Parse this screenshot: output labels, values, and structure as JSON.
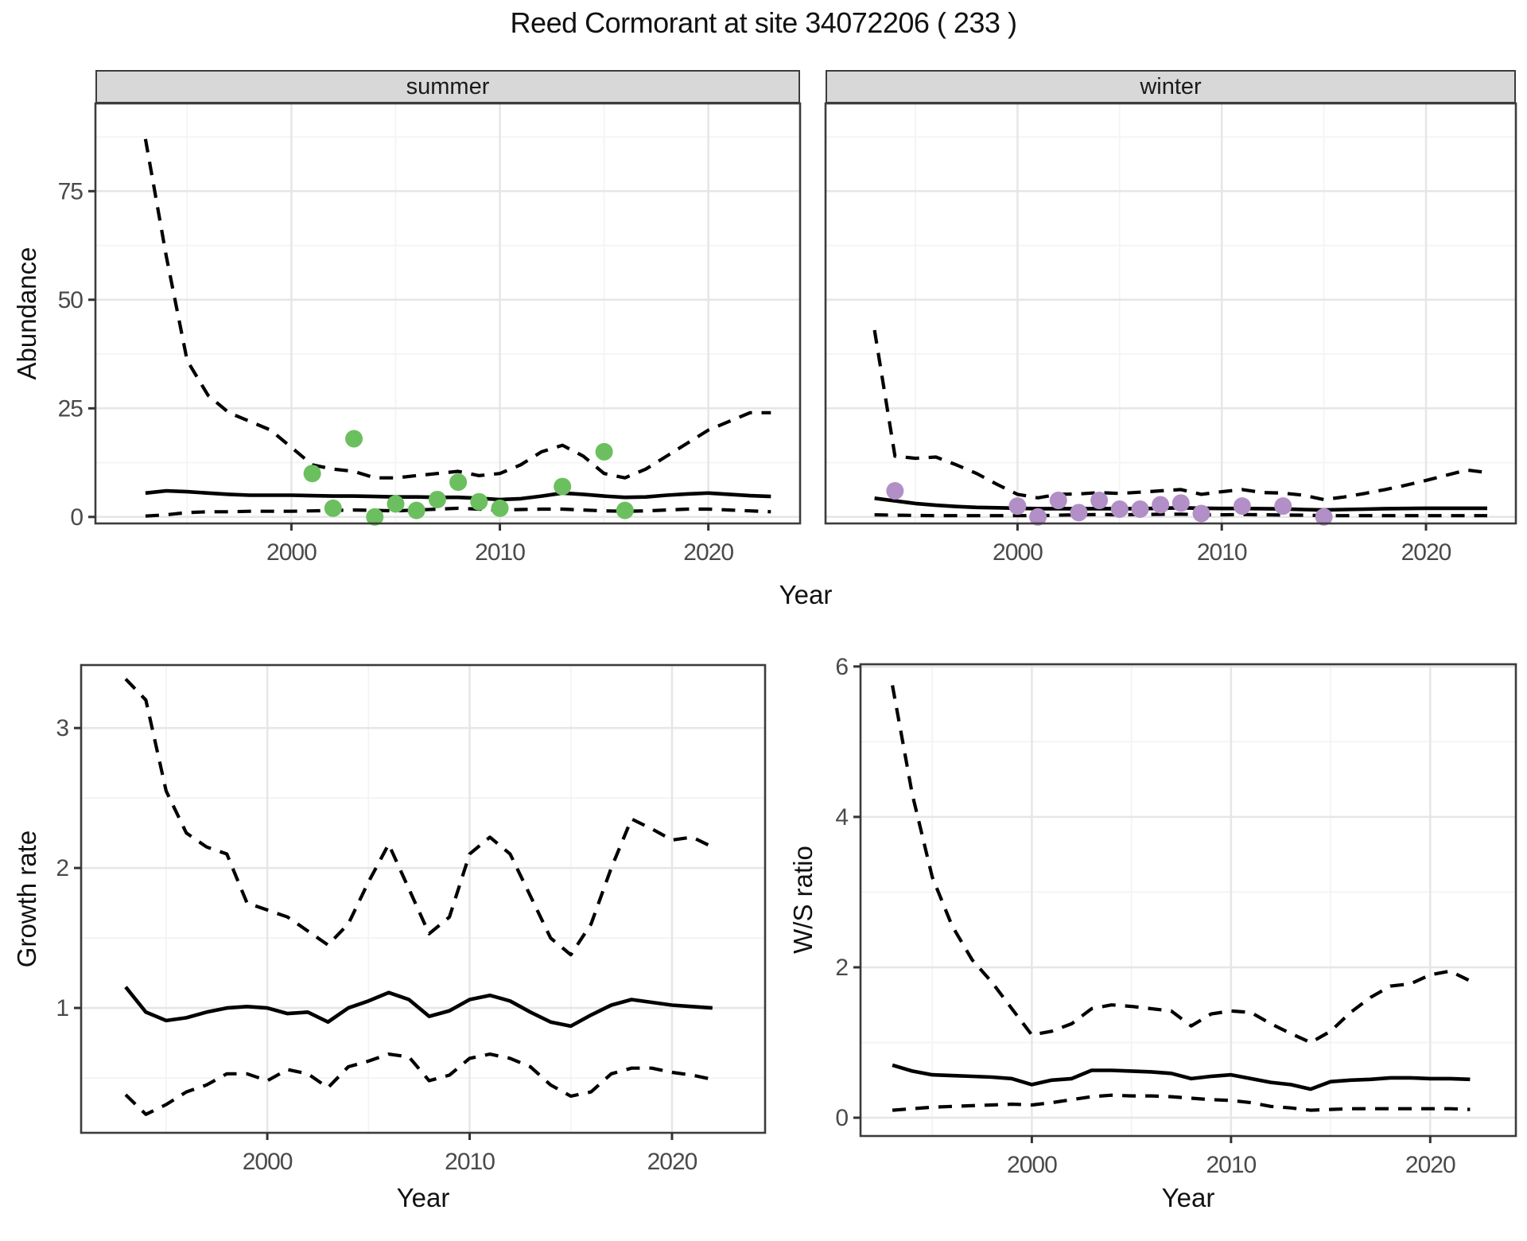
{
  "title": "Reed Cormorant at site 34072206 ( 233 )",
  "colors": {
    "summer_point": "#6cbf5f",
    "winter_point": "#b28fc6",
    "line": "#000000",
    "strip_bg": "#d8d8d8",
    "panel_bg": "#ffffff",
    "grid_major": "#e6e6e6",
    "grid_minor": "#f3f3f3",
    "panel_border": "#3c3c3c",
    "axis_text": "#4a4a4a",
    "tick_mark": "#333333"
  },
  "chart_data": [
    {
      "type": "line+scatter",
      "facet": "summer",
      "xlabel": "Year",
      "ylabel": "Abundance",
      "xlim": [
        1990.6,
        2024.4
      ],
      "ylim": [
        -1.5,
        95.2
      ],
      "xticks": [
        2000,
        2010,
        2020
      ],
      "xminor": [
        1995,
        2005,
        2015
      ],
      "yticks": [
        0,
        25,
        50,
        75
      ],
      "yminor": [
        12.5,
        37.5,
        62.5,
        87.5
      ],
      "grid": true,
      "legend": "none",
      "years": [
        1993,
        1994,
        1995,
        1996,
        1997,
        1998,
        1999,
        2000,
        2001,
        2002,
        2003,
        2004,
        2005,
        2006,
        2007,
        2008,
        2009,
        2010,
        2011,
        2012,
        2013,
        2014,
        2015,
        2016,
        2017,
        2018,
        2019,
        2020,
        2021,
        2022,
        2023
      ],
      "series": [
        {
          "name": "upper_95ci",
          "style": "dashed",
          "values": [
            87,
            60,
            36,
            28,
            24,
            22,
            20,
            16,
            12,
            11,
            10.5,
            9,
            9,
            9.5,
            10,
            10.5,
            9.5,
            10,
            12,
            15,
            16.5,
            14,
            10,
            9,
            11,
            14,
            17,
            20,
            22,
            24,
            24
          ]
        },
        {
          "name": "lower_95ci",
          "style": "dashed",
          "values": [
            0.2,
            0.5,
            1.0,
            1.2,
            1.2,
            1.3,
            1.3,
            1.3,
            1.4,
            1.5,
            1.6,
            1.5,
            1.4,
            1.6,
            1.8,
            2.0,
            1.8,
            1.6,
            1.7,
            1.8,
            1.8,
            1.6,
            1.4,
            1.3,
            1.4,
            1.6,
            1.8,
            1.8,
            1.6,
            1.4,
            1.2
          ]
        },
        {
          "name": "mean",
          "style": "solid",
          "values": [
            5.5,
            6.0,
            5.8,
            5.5,
            5.2,
            5.0,
            5.0,
            5.0,
            4.9,
            4.8,
            4.8,
            4.7,
            4.6,
            4.6,
            4.5,
            4.5,
            4.3,
            4.0,
            4.2,
            4.8,
            5.5,
            5.2,
            4.8,
            4.5,
            4.6,
            5.0,
            5.3,
            5.5,
            5.2,
            4.9,
            4.7
          ]
        }
      ],
      "points": {
        "name": "observed_counts",
        "x": [
          2001,
          2002,
          2003,
          2004,
          2005,
          2006,
          2007,
          2008,
          2009,
          2010,
          2013,
          2015,
          2016
        ],
        "y": [
          10,
          2,
          18,
          0,
          3,
          1.5,
          4,
          8,
          3.5,
          2,
          7,
          15,
          1.5
        ]
      }
    },
    {
      "type": "line+scatter",
      "facet": "winter",
      "xlabel": "Year",
      "ylabel": "Abundance",
      "xlim": [
        1990.6,
        2024.4
      ],
      "ylim": [
        -1.5,
        95.2
      ],
      "xticks": [
        2000,
        2010,
        2020
      ],
      "xminor": [
        1995,
        2005,
        2015
      ],
      "yticks": [
        0,
        25,
        50,
        75
      ],
      "yminor": [
        12.5,
        37.5,
        62.5,
        87.5
      ],
      "grid": true,
      "legend": "none",
      "years": [
        1993,
        1994,
        1995,
        1996,
        1997,
        1998,
        1999,
        2000,
        2001,
        2002,
        2003,
        2004,
        2005,
        2006,
        2007,
        2008,
        2009,
        2010,
        2011,
        2012,
        2013,
        2014,
        2015,
        2016,
        2017,
        2018,
        2019,
        2020,
        2021,
        2022,
        2023
      ],
      "series": [
        {
          "name": "upper_95ci",
          "style": "dashed",
          "values": [
            43,
            14,
            13.5,
            13.8,
            12,
            10,
            7.5,
            5.2,
            4.4,
            5.2,
            5.3,
            5.6,
            5.4,
            5.7,
            6.0,
            6.3,
            5.2,
            5.8,
            6.3,
            5.6,
            5.5,
            5.0,
            4.0,
            4.6,
            5.4,
            6.3,
            7.3,
            8.4,
            9.6,
            10.8,
            10.2
          ]
        },
        {
          "name": "lower_95ci",
          "style": "dashed",
          "values": [
            0.5,
            0.4,
            0.35,
            0.3,
            0.3,
            0.3,
            0.3,
            0.3,
            0.3,
            0.4,
            0.5,
            0.55,
            0.5,
            0.55,
            0.6,
            0.65,
            0.5,
            0.5,
            0.55,
            0.5,
            0.45,
            0.4,
            0.3,
            0.3,
            0.3,
            0.3,
            0.3,
            0.3,
            0.3,
            0.3,
            0.3
          ]
        },
        {
          "name": "mean",
          "style": "solid",
          "values": [
            4.3,
            3.7,
            3.1,
            2.7,
            2.4,
            2.2,
            2.1,
            2.0,
            1.9,
            1.9,
            1.9,
            1.9,
            1.9,
            1.9,
            2.0,
            2.1,
            2.0,
            1.95,
            1.95,
            1.9,
            1.85,
            1.7,
            1.6,
            1.7,
            1.8,
            1.9,
            1.95,
            2.0,
            2.0,
            2.0,
            2.0
          ]
        }
      ],
      "points": {
        "name": "observed_counts",
        "x": [
          1994,
          2000,
          2001,
          2002,
          2003,
          2004,
          2005,
          2006,
          2007,
          2008,
          2009,
          2011,
          2013,
          2015
        ],
        "y": [
          6,
          2.5,
          0,
          3.8,
          1,
          3.8,
          1.8,
          1.8,
          2.8,
          3.2,
          0.8,
          2.5,
          2.5,
          0
        ]
      }
    },
    {
      "type": "line",
      "facet": "",
      "xlabel": "Year",
      "ylabel": "Growth rate",
      "xlim": [
        1990.8,
        2024.6
      ],
      "ylim": [
        0.108,
        3.45
      ],
      "xticks": [
        2000,
        2010,
        2020
      ],
      "xminor": [
        1995,
        2005,
        2015
      ],
      "yticks": [
        1,
        2,
        3
      ],
      "yminor": [
        0.5,
        1.5,
        2.5
      ],
      "grid": true,
      "legend": "none",
      "years": [
        1993,
        1994,
        1995,
        1996,
        1997,
        1998,
        1999,
        2000,
        2001,
        2002,
        2003,
        2004,
        2005,
        2006,
        2007,
        2008,
        2009,
        2010,
        2011,
        2012,
        2013,
        2014,
        2015,
        2016,
        2017,
        2018,
        2019,
        2020,
        2021,
        2022
      ],
      "series": [
        {
          "name": "upper_95ci",
          "style": "dashed",
          "values": [
            3.35,
            3.2,
            2.55,
            2.25,
            2.15,
            2.1,
            1.75,
            1.7,
            1.65,
            1.55,
            1.45,
            1.6,
            1.9,
            2.17,
            1.85,
            1.53,
            1.65,
            2.1,
            2.22,
            2.1,
            1.8,
            1.5,
            1.38,
            1.6,
            2.0,
            2.35,
            2.28,
            2.2,
            2.22,
            2.15
          ]
        },
        {
          "name": "lower_95ci",
          "style": "dashed",
          "values": [
            0.38,
            0.24,
            0.31,
            0.4,
            0.45,
            0.53,
            0.53,
            0.48,
            0.56,
            0.53,
            0.43,
            0.58,
            0.62,
            0.67,
            0.65,
            0.48,
            0.52,
            0.64,
            0.67,
            0.64,
            0.58,
            0.45,
            0.37,
            0.4,
            0.53,
            0.57,
            0.57,
            0.54,
            0.52,
            0.49
          ]
        },
        {
          "name": "mean",
          "style": "solid",
          "values": [
            1.15,
            0.97,
            0.91,
            0.93,
            0.97,
            1.0,
            1.01,
            1.0,
            0.96,
            0.97,
            0.9,
            1.0,
            1.05,
            1.11,
            1.06,
            0.94,
            0.98,
            1.06,
            1.09,
            1.05,
            0.97,
            0.9,
            0.87,
            0.95,
            1.02,
            1.06,
            1.04,
            1.02,
            1.01,
            1.0
          ]
        }
      ]
    },
    {
      "type": "line",
      "facet": "",
      "xlabel": "Year",
      "ylabel": "W/S ratio",
      "xlim": [
        1991.4,
        2024.3
      ],
      "ylim": [
        -0.243,
        6.03
      ],
      "xticks": [
        2000,
        2010,
        2020
      ],
      "xminor": [
        1995,
        2005,
        2015
      ],
      "yticks": [
        0,
        2,
        4,
        6
      ],
      "yminor": [
        1,
        3,
        5
      ],
      "grid": true,
      "legend": "none",
      "years": [
        1993,
        1994,
        1995,
        1996,
        1997,
        1998,
        1999,
        2000,
        2001,
        2002,
        2003,
        2004,
        2005,
        2006,
        2007,
        2008,
        2009,
        2010,
        2011,
        2012,
        2013,
        2014,
        2015,
        2016,
        2017,
        2018,
        2019,
        2020,
        2021,
        2022
      ],
      "series": [
        {
          "name": "upper_95ci",
          "style": "dashed",
          "values": [
            5.75,
            4.3,
            3.2,
            2.55,
            2.1,
            1.8,
            1.45,
            1.1,
            1.15,
            1.25,
            1.45,
            1.5,
            1.48,
            1.45,
            1.42,
            1.22,
            1.38,
            1.42,
            1.4,
            1.25,
            1.12,
            1.0,
            1.15,
            1.4,
            1.6,
            1.75,
            1.78,
            1.9,
            1.95,
            1.82
          ]
        },
        {
          "name": "lower_95ci",
          "style": "dashed",
          "values": [
            0.1,
            0.12,
            0.14,
            0.15,
            0.16,
            0.17,
            0.18,
            0.17,
            0.2,
            0.24,
            0.28,
            0.3,
            0.29,
            0.29,
            0.28,
            0.26,
            0.24,
            0.23,
            0.2,
            0.15,
            0.13,
            0.1,
            0.11,
            0.12,
            0.12,
            0.12,
            0.12,
            0.12,
            0.12,
            0.11
          ]
        },
        {
          "name": "mean",
          "style": "solid",
          "values": [
            0.7,
            0.62,
            0.57,
            0.56,
            0.55,
            0.54,
            0.52,
            0.44,
            0.5,
            0.52,
            0.63,
            0.63,
            0.62,
            0.61,
            0.59,
            0.52,
            0.55,
            0.57,
            0.52,
            0.47,
            0.44,
            0.38,
            0.48,
            0.5,
            0.51,
            0.53,
            0.53,
            0.52,
            0.52,
            0.51
          ]
        }
      ]
    }
  ]
}
